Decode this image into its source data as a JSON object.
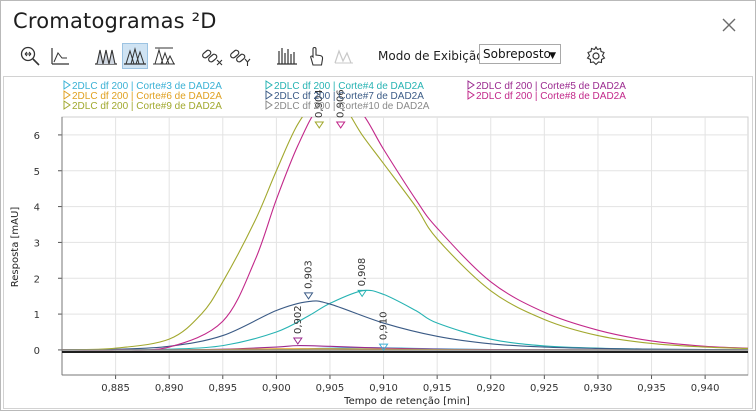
{
  "window": {
    "title": "Cromatogramas ²D"
  },
  "toolbar": {
    "mode_label": "Modo de Exibição",
    "mode_value": "Sobreposto",
    "icons": [
      "zoom-fit-icon",
      "baseline-icon",
      "peaks-stacked-icon",
      "peaks-overlay-icon",
      "peaks-normalized-icon",
      "unlink-x-icon",
      "unlink-y-icon",
      "spectrum-icon",
      "hand-pointer-icon",
      "peak-shape-icon",
      "settings-gear-icon"
    ]
  },
  "chart_data": {
    "type": "line",
    "xlabel": "Tempo de retenção [min]",
    "ylabel": "Resposta [mAU]",
    "xlim": [
      0.88,
      0.944
    ],
    "ylim": [
      -0.7,
      6.5
    ],
    "x_ticks": [
      "0,885",
      "0,890",
      "0,895",
      "0,900",
      "0,905",
      "0,910",
      "0,915",
      "0,920",
      "0,925",
      "0,930",
      "0,935",
      "0,940"
    ],
    "y_ticks": [
      "0",
      "1",
      "2",
      "3",
      "4",
      "5",
      "6"
    ],
    "grid": true,
    "legend_placement": "top",
    "series": [
      {
        "name": "2DLC df 200 | Corte#3 de DAD2A",
        "color": "#3ab0d6",
        "x": [
          0.88,
          0.89,
          0.895,
          0.9,
          0.905,
          0.91,
          0.915,
          0.92,
          0.925,
          0.93,
          0.935,
          0.94,
          0.944
        ],
        "y": [
          0.0,
          0.0,
          0.0,
          0.01,
          0.05,
          0.06,
          0.03,
          0.01,
          0.0,
          0.0,
          0.0,
          0.0,
          0.0
        ]
      },
      {
        "name": "2DLC df 200 | Corte#4 de DAD2A",
        "color": "#27b3b3",
        "x": [
          0.88,
          0.885,
          0.89,
          0.895,
          0.9,
          0.903,
          0.905,
          0.908,
          0.91,
          0.913,
          0.915,
          0.92,
          0.925,
          0.93,
          0.935,
          0.94,
          0.944
        ],
        "y": [
          0.0,
          0.0,
          0.02,
          0.12,
          0.5,
          0.95,
          1.3,
          1.65,
          1.55,
          1.1,
          0.75,
          0.3,
          0.11,
          0.05,
          0.02,
          0.01,
          0.0
        ]
      },
      {
        "name": "2DLC df 200 | Corte#5 de DAD2A",
        "color": "#9b2a8f",
        "x": [
          0.88,
          0.89,
          0.895,
          0.9,
          0.902,
          0.905,
          0.91,
          0.915,
          0.92,
          0.93,
          0.944
        ],
        "y": [
          0.0,
          0.0,
          0.02,
          0.08,
          0.12,
          0.1,
          0.05,
          0.02,
          0.01,
          0.0,
          0.0
        ]
      },
      {
        "name": "2DLC df 200 | Corte#6 de DAD2A",
        "color": "#e0a020",
        "x": [
          0.88,
          0.89,
          0.895,
          0.9,
          0.905,
          0.91,
          0.92,
          0.944
        ],
        "y": [
          0.0,
          0.0,
          0.01,
          0.03,
          0.03,
          0.02,
          0.0,
          0.0
        ]
      },
      {
        "name": "2DLC df 200 | Corte#7 de DAD2A",
        "color": "#3b5b86",
        "x": [
          0.88,
          0.885,
          0.89,
          0.895,
          0.9,
          0.903,
          0.905,
          0.91,
          0.915,
          0.92,
          0.925,
          0.93,
          0.935,
          0.94,
          0.944
        ],
        "y": [
          0.0,
          0.02,
          0.1,
          0.4,
          1.1,
          1.35,
          1.28,
          0.75,
          0.38,
          0.17,
          0.08,
          0.04,
          0.02,
          0.01,
          0.0
        ]
      },
      {
        "name": "2DLC df 200 | Corte#8 de DAD2A",
        "color": "#c2288a",
        "x": [
          0.88,
          0.885,
          0.89,
          0.895,
          0.898,
          0.9,
          0.902,
          0.904,
          0.906,
          0.908,
          0.91,
          0.913,
          0.915,
          0.92,
          0.925,
          0.93,
          0.935,
          0.94,
          0.944
        ],
        "y": [
          0.0,
          0.0,
          0.08,
          0.8,
          2.5,
          4.2,
          5.7,
          6.8,
          7.0,
          6.6,
          5.6,
          4.2,
          3.4,
          1.9,
          1.05,
          0.55,
          0.25,
          0.1,
          0.05
        ]
      },
      {
        "name": "2DLC df 200 | Corte#9 de DAD2A",
        "color": "#a2a82e",
        "x": [
          0.88,
          0.885,
          0.89,
          0.893,
          0.895,
          0.898,
          0.9,
          0.902,
          0.904,
          0.906,
          0.908,
          0.91,
          0.913,
          0.915,
          0.92,
          0.925,
          0.93,
          0.935,
          0.94,
          0.944
        ],
        "y": [
          0.0,
          0.05,
          0.3,
          1.0,
          1.9,
          3.6,
          5.0,
          6.3,
          7.0,
          6.9,
          6.0,
          5.2,
          4.0,
          3.1,
          1.65,
          0.85,
          0.4,
          0.18,
          0.08,
          0.04
        ]
      },
      {
        "name": "2DLC df 200 | Corte#10 de DAD2A",
        "color": "#8a8a8a",
        "x": [
          0.88,
          0.944
        ],
        "y": [
          0.0,
          0.0
        ]
      }
    ],
    "annotations": [
      {
        "label": "0,904",
        "x": 0.904,
        "y": 6.25,
        "color": "#a2a82e"
      },
      {
        "label": "0,906",
        "x": 0.906,
        "y": 6.25,
        "color": "#c2288a"
      },
      {
        "label": "0,903",
        "x": 0.903,
        "y": 1.48,
        "color": "#3b5b86"
      },
      {
        "label": "0,908",
        "x": 0.908,
        "y": 1.55,
        "color": "#27b3b3"
      },
      {
        "label": "0,902",
        "x": 0.902,
        "y": 0.22,
        "color": "#9b2a8f"
      },
      {
        "label": "0,910",
        "x": 0.91,
        "y": 0.05,
        "color": "#3ab0d6"
      }
    ]
  }
}
